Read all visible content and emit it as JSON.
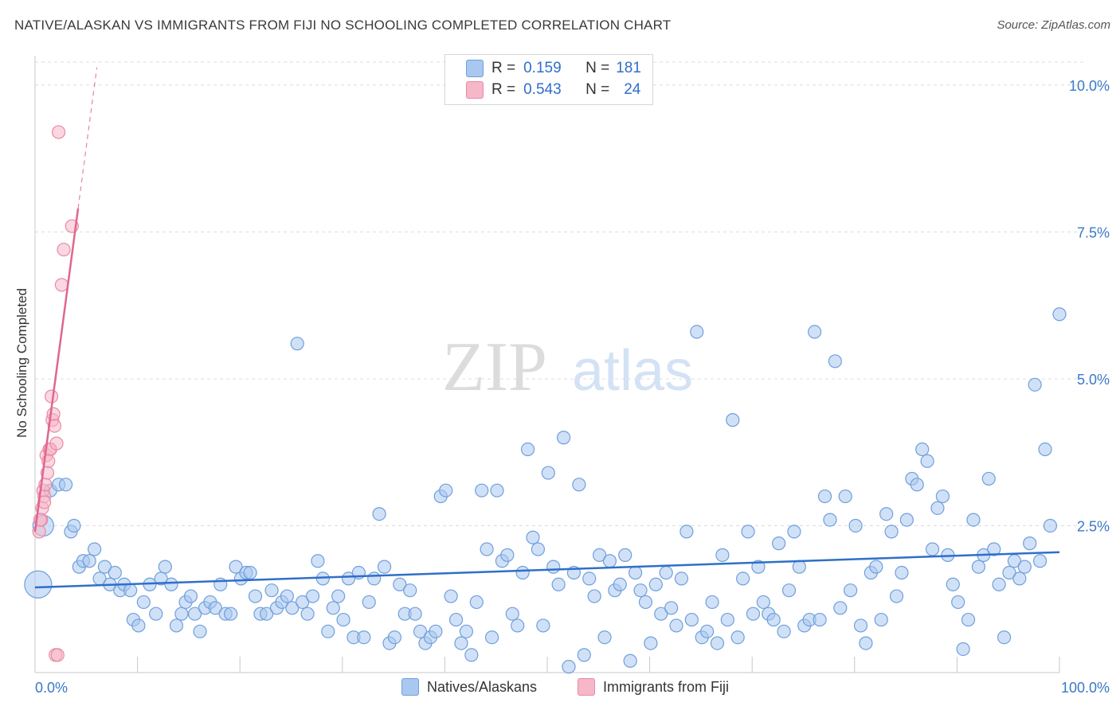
{
  "title": "NATIVE/ALASKAN VS IMMIGRANTS FROM FIJI NO SCHOOLING COMPLETED CORRELATION CHART",
  "source": "Source: ZipAtlas.com",
  "watermark": {
    "zip": "ZIP",
    "atlas": "atlas"
  },
  "colors": {
    "blue_fill": "#a9c8f0",
    "blue_stroke": "#6f9fdc",
    "blue_line": "#2f6fc9",
    "pink_fill": "#f6b7c8",
    "pink_stroke": "#e98aa6",
    "pink_line": "#e0668e",
    "axis_text": "#3a78c8",
    "grid": "#dcdcdc"
  },
  "legend": {
    "rows": [
      {
        "r_label": "R =",
        "r_value": "0.159",
        "n_label": "N =",
        "n_value": "181"
      },
      {
        "r_label": "R =",
        "r_value": "0.543",
        "n_label": "N =",
        "n_value": "24"
      }
    ]
  },
  "bottom_legend": {
    "series1": "Natives/Alaskans",
    "series2": "Immigrants from Fiji"
  },
  "chart_data": {
    "type": "scatter",
    "xlabel": "",
    "ylabel": "No Schooling Completed",
    "xlim": [
      0,
      100
    ],
    "ylim": [
      0,
      10.5
    ],
    "x_tick_labels": [
      "0.0%",
      "100.0%"
    ],
    "y_tick_labels": [
      "2.5%",
      "5.0%",
      "7.5%",
      "10.0%"
    ],
    "y_ticks": [
      2.5,
      5.0,
      7.5,
      10.0
    ],
    "grid": true,
    "legend_position": "top-center",
    "series": [
      {
        "name": "Natives/Alaskans",
        "trend": {
          "x": [
            0,
            100
          ],
          "y": [
            1.45,
            2.05
          ]
        },
        "points": [
          [
            0.3,
            1.5
          ],
          [
            0.8,
            2.5
          ],
          [
            1.5,
            3.1
          ],
          [
            2.3,
            3.2
          ],
          [
            3,
            3.2
          ],
          [
            3.5,
            2.4
          ],
          [
            3.8,
            2.5
          ],
          [
            4.3,
            1.8
          ],
          [
            4.7,
            1.9
          ],
          [
            5.3,
            1.9
          ],
          [
            5.8,
            2.1
          ],
          [
            6.3,
            1.6
          ],
          [
            6.8,
            1.8
          ],
          [
            7.3,
            1.5
          ],
          [
            7.8,
            1.7
          ],
          [
            8.3,
            1.4
          ],
          [
            8.7,
            1.5
          ],
          [
            9.3,
            1.4
          ],
          [
            9.6,
            0.9
          ],
          [
            10.1,
            0.8
          ],
          [
            10.6,
            1.2
          ],
          [
            11.2,
            1.5
          ],
          [
            11.8,
            1.0
          ],
          [
            12.3,
            1.6
          ],
          [
            12.7,
            1.8
          ],
          [
            13.3,
            1.5
          ],
          [
            13.8,
            0.8
          ],
          [
            14.3,
            1.0
          ],
          [
            14.7,
            1.2
          ],
          [
            15.2,
            1.3
          ],
          [
            15.6,
            1.0
          ],
          [
            16.1,
            0.7
          ],
          [
            16.6,
            1.1
          ],
          [
            17.1,
            1.2
          ],
          [
            17.6,
            1.1
          ],
          [
            18.1,
            1.5
          ],
          [
            18.6,
            1.0
          ],
          [
            19.1,
            1.0
          ],
          [
            19.6,
            1.8
          ],
          [
            20.1,
            1.6
          ],
          [
            20.6,
            1.7
          ],
          [
            21.0,
            1.7
          ],
          [
            21.5,
            1.3
          ],
          [
            22.0,
            1.0
          ],
          [
            22.6,
            1.0
          ],
          [
            23.1,
            1.4
          ],
          [
            23.6,
            1.1
          ],
          [
            24.1,
            1.2
          ],
          [
            24.6,
            1.3
          ],
          [
            25.1,
            1.1
          ],
          [
            25.6,
            5.6
          ],
          [
            26.1,
            1.2
          ],
          [
            26.6,
            1.0
          ],
          [
            27.1,
            1.3
          ],
          [
            27.6,
            1.9
          ],
          [
            28.1,
            1.6
          ],
          [
            28.6,
            0.7
          ],
          [
            29.1,
            1.1
          ],
          [
            29.6,
            1.3
          ],
          [
            30.1,
            0.9
          ],
          [
            30.6,
            1.6
          ],
          [
            31.1,
            0.6
          ],
          [
            31.6,
            1.7
          ],
          [
            32.1,
            0.6
          ],
          [
            32.6,
            1.2
          ],
          [
            33.1,
            1.6
          ],
          [
            33.6,
            2.7
          ],
          [
            34.1,
            1.8
          ],
          [
            34.6,
            0.5
          ],
          [
            35.1,
            0.6
          ],
          [
            35.6,
            1.5
          ],
          [
            36.1,
            1.0
          ],
          [
            36.6,
            1.4
          ],
          [
            37.1,
            1.0
          ],
          [
            37.6,
            0.7
          ],
          [
            38.1,
            0.5
          ],
          [
            38.6,
            0.6
          ],
          [
            39.1,
            0.7
          ],
          [
            39.6,
            3.0
          ],
          [
            40.1,
            3.1
          ],
          [
            40.6,
            1.3
          ],
          [
            41.1,
            0.9
          ],
          [
            41.6,
            0.5
          ],
          [
            42.1,
            0.7
          ],
          [
            42.6,
            0.3
          ],
          [
            43.1,
            1.2
          ],
          [
            43.6,
            3.1
          ],
          [
            44.1,
            2.1
          ],
          [
            44.6,
            0.6
          ],
          [
            45.1,
            3.1
          ],
          [
            45.6,
            1.9
          ],
          [
            46.1,
            2.0
          ],
          [
            46.6,
            1.0
          ],
          [
            47.1,
            0.8
          ],
          [
            47.6,
            1.7
          ],
          [
            48.1,
            3.8
          ],
          [
            48.6,
            2.3
          ],
          [
            49.1,
            2.1
          ],
          [
            49.6,
            0.8
          ],
          [
            50.1,
            3.4
          ],
          [
            50.6,
            1.8
          ],
          [
            51.1,
            1.5
          ],
          [
            51.6,
            4.0
          ],
          [
            52.1,
            0.1
          ],
          [
            52.6,
            1.7
          ],
          [
            53.1,
            3.2
          ],
          [
            53.6,
            0.3
          ],
          [
            54.1,
            1.6
          ],
          [
            54.6,
            1.3
          ],
          [
            55.1,
            2.0
          ],
          [
            55.6,
            0.6
          ],
          [
            56.1,
            1.9
          ],
          [
            56.6,
            1.4
          ],
          [
            57.1,
            1.5
          ],
          [
            57.6,
            2.0
          ],
          [
            58.1,
            0.2
          ],
          [
            58.6,
            1.7
          ],
          [
            59.1,
            1.4
          ],
          [
            59.6,
            1.2
          ],
          [
            60.1,
            0.5
          ],
          [
            60.6,
            1.5
          ],
          [
            61.1,
            1.0
          ],
          [
            61.6,
            1.7
          ],
          [
            62.1,
            1.1
          ],
          [
            62.6,
            0.8
          ],
          [
            63.1,
            1.6
          ],
          [
            63.6,
            2.4
          ],
          [
            64.1,
            0.9
          ],
          [
            64.6,
            5.8
          ],
          [
            65.1,
            0.6
          ],
          [
            65.6,
            0.7
          ],
          [
            66.1,
            1.2
          ],
          [
            66.6,
            0.5
          ],
          [
            67.1,
            2.0
          ],
          [
            67.6,
            0.9
          ],
          [
            68.1,
            4.3
          ],
          [
            68.6,
            0.6
          ],
          [
            69.1,
            1.6
          ],
          [
            69.6,
            2.4
          ],
          [
            70.1,
            1.0
          ],
          [
            70.6,
            1.8
          ],
          [
            71.1,
            1.2
          ],
          [
            71.6,
            1.0
          ],
          [
            72.1,
            0.9
          ],
          [
            72.6,
            2.2
          ],
          [
            73.1,
            0.7
          ],
          [
            73.6,
            1.4
          ],
          [
            74.1,
            2.4
          ],
          [
            74.6,
            1.8
          ],
          [
            75.1,
            0.8
          ],
          [
            75.6,
            0.9
          ],
          [
            76.1,
            5.8
          ],
          [
            76.6,
            0.9
          ],
          [
            77.1,
            3.0
          ],
          [
            77.6,
            2.6
          ],
          [
            78.1,
            5.3
          ],
          [
            78.6,
            1.1
          ],
          [
            79.1,
            3.0
          ],
          [
            79.6,
            1.4
          ],
          [
            80.1,
            2.5
          ],
          [
            80.6,
            0.8
          ],
          [
            81.1,
            0.5
          ],
          [
            81.6,
            1.7
          ],
          [
            82.1,
            1.8
          ],
          [
            82.6,
            0.9
          ],
          [
            83.1,
            2.7
          ],
          [
            83.6,
            2.4
          ],
          [
            84.1,
            1.3
          ],
          [
            84.6,
            1.7
          ],
          [
            85.1,
            2.6
          ],
          [
            85.6,
            3.3
          ],
          [
            86.1,
            3.2
          ],
          [
            86.6,
            3.8
          ],
          [
            87.1,
            3.6
          ],
          [
            87.6,
            2.1
          ],
          [
            88.1,
            2.8
          ],
          [
            88.6,
            3.0
          ],
          [
            89.1,
            2.0
          ],
          [
            89.6,
            1.5
          ],
          [
            90.1,
            1.2
          ],
          [
            90.6,
            0.4
          ],
          [
            91.1,
            0.9
          ],
          [
            91.6,
            2.6
          ],
          [
            92.1,
            1.8
          ],
          [
            92.6,
            2.0
          ],
          [
            93.1,
            3.3
          ],
          [
            93.6,
            2.1
          ],
          [
            94.1,
            1.5
          ],
          [
            94.6,
            0.6
          ],
          [
            95.1,
            1.7
          ],
          [
            95.6,
            1.9
          ],
          [
            96.1,
            1.6
          ],
          [
            96.6,
            1.8
          ],
          [
            97.1,
            2.2
          ],
          [
            97.6,
            4.9
          ],
          [
            98.1,
            1.9
          ],
          [
            98.6,
            3.8
          ],
          [
            99.1,
            2.5
          ],
          [
            100,
            6.1
          ]
        ]
      },
      {
        "name": "Immigrants from Fiji",
        "trend": {
          "x": [
            0,
            4.2
          ],
          "y": [
            2.4,
            7.9
          ]
        },
        "points": [
          [
            0.4,
            2.4
          ],
          [
            0.6,
            2.6
          ],
          [
            0.7,
            2.8
          ],
          [
            0.8,
            3.1
          ],
          [
            0.9,
            3.0
          ],
          [
            1.0,
            3.2
          ],
          [
            1.1,
            3.7
          ],
          [
            1.2,
            3.4
          ],
          [
            1.4,
            3.8
          ],
          [
            1.5,
            3.8
          ],
          [
            1.6,
            4.7
          ],
          [
            1.7,
            4.3
          ],
          [
            1.8,
            4.4
          ],
          [
            1.9,
            4.2
          ],
          [
            2.0,
            0.3
          ],
          [
            2.1,
            3.9
          ],
          [
            2.2,
            0.3
          ],
          [
            2.3,
            9.2
          ],
          [
            2.6,
            6.6
          ],
          [
            2.8,
            7.2
          ],
          [
            3.6,
            7.6
          ],
          [
            0.5,
            2.6
          ],
          [
            0.9,
            2.9
          ],
          [
            1.3,
            3.6
          ]
        ]
      }
    ]
  }
}
